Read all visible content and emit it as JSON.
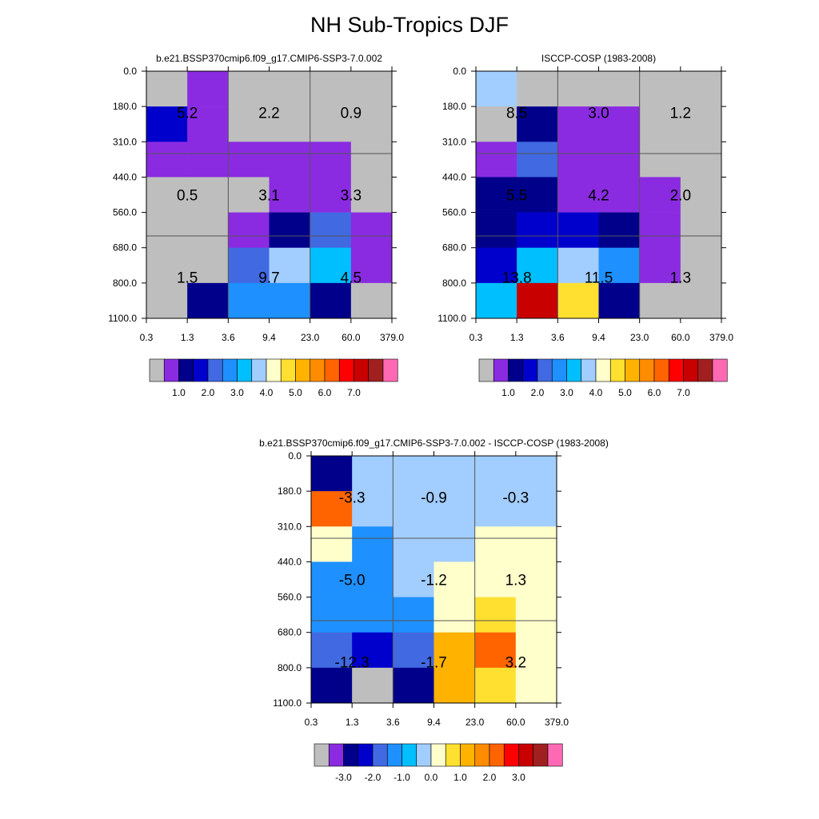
{
  "title": "NH Sub-Tropics DJF",
  "chart_data": [
    {
      "type": "heatmap",
      "title": "b.e21.BSSP370cmip6.f09_g17.CMIP6-SSP3-7.0.002",
      "x_ticks": [
        "0.3",
        "1.3",
        "3.6",
        "9.4",
        "23.0",
        "60.0",
        "379.0"
      ],
      "y_ticks": [
        "0.0",
        "180.0",
        "310.0",
        "440.0",
        "560.0",
        "680.0",
        "800.0",
        "1100.0"
      ],
      "cells": [
        [
          "missing",
          "lt1",
          "missing",
          "missing",
          "missing",
          "missing"
        ],
        [
          "1-1.5",
          "lt1",
          "missing",
          "missing",
          "missing",
          "missing"
        ],
        [
          "lt1",
          "lt1",
          "lt1",
          "lt1",
          "lt1",
          "missing"
        ],
        [
          "missing",
          "missing",
          "missing",
          "lt1",
          "lt1",
          "missing"
        ],
        [
          "missing",
          "missing",
          "lt1",
          "0.5-1",
          "1.5-2",
          "lt1"
        ],
        [
          "missing",
          "missing",
          "1.5-2",
          "3.5-4",
          "2.5-3",
          "lt1"
        ],
        [
          "missing",
          "0.5-1",
          "2-2.5",
          "2-2.5",
          "0.5-1",
          "missing"
        ]
      ],
      "block_labels": [
        {
          "row": 0,
          "col": 0,
          "text": "5.2"
        },
        {
          "row": 0,
          "col": 1,
          "text": "2.2"
        },
        {
          "row": 0,
          "col": 2,
          "text": "0.9"
        },
        {
          "row": 1,
          "col": 0,
          "text": "0.5"
        },
        {
          "row": 1,
          "col": 1,
          "text": "3.1"
        },
        {
          "row": 1,
          "col": 2,
          "text": "3.3"
        },
        {
          "row": 2,
          "col": 0,
          "text": "1.5"
        },
        {
          "row": 2,
          "col": 1,
          "text": "9.7"
        },
        {
          "row": 2,
          "col": 2,
          "text": "4.5"
        }
      ],
      "colorbar": {
        "colors": [
          "#bebebe",
          "#8a2be2",
          "#00008b",
          "#0000cd",
          "#4169e1",
          "#1e90ff",
          "#00bfff",
          "#a2cdff",
          "#ffffcc",
          "#ffe030",
          "#ffb300",
          "#ff8c00",
          "#ff6400",
          "#ff0000",
          "#c80000",
          "#a02020",
          "#ff69b4"
        ],
        "labels": [
          "1.0",
          "2.0",
          "3.0",
          "4.0",
          "5.0",
          "6.0",
          "7.0"
        ]
      }
    },
    {
      "type": "heatmap",
      "title": "ISCCP-COSP (1983-2008)",
      "x_ticks": [
        "0.3",
        "1.3",
        "3.6",
        "9.4",
        "23.0",
        "60.0",
        "379.0"
      ],
      "y_ticks": [
        "0.0",
        "180.0",
        "310.0",
        "440.0",
        "560.0",
        "680.0",
        "800.0",
        "1100.0"
      ],
      "cells": [
        [
          "3.5-4",
          "missing",
          "missing",
          "missing",
          "missing",
          "missing"
        ],
        [
          "missing",
          "0.5-1",
          "lt1",
          "lt1",
          "missing",
          "missing"
        ],
        [
          "lt1",
          "1.5-2",
          "lt1",
          "lt1",
          "missing",
          "missing"
        ],
        [
          "0.5-1",
          "0.5-1",
          "lt1",
          "lt1",
          "lt1",
          "missing"
        ],
        [
          "0.5-1",
          "1-1.5",
          "1-1.5",
          "0.5-1",
          "lt1",
          "missing"
        ],
        [
          "1-1.5",
          "2.5-3",
          "3.5-4",
          "2-2.5",
          "lt1",
          "missing"
        ],
        [
          "2.5-3",
          "6.5-7",
          "4.5-5",
          "0.5-1",
          "missing",
          "missing"
        ]
      ],
      "block_labels": [
        {
          "row": 0,
          "col": 0,
          "text": "8.5"
        },
        {
          "row": 0,
          "col": 1,
          "text": "3.0"
        },
        {
          "row": 0,
          "col": 2,
          "text": "1.2"
        },
        {
          "row": 1,
          "col": 0,
          "text": "5.5"
        },
        {
          "row": 1,
          "col": 1,
          "text": "4.2"
        },
        {
          "row": 1,
          "col": 2,
          "text": "2.0"
        },
        {
          "row": 2,
          "col": 0,
          "text": "13.8"
        },
        {
          "row": 2,
          "col": 1,
          "text": "11.5"
        },
        {
          "row": 2,
          "col": 2,
          "text": "1.3"
        }
      ],
      "colorbar": {
        "colors": [
          "#bebebe",
          "#8a2be2",
          "#00008b",
          "#0000cd",
          "#4169e1",
          "#1e90ff",
          "#00bfff",
          "#a2cdff",
          "#ffffcc",
          "#ffe030",
          "#ffb300",
          "#ff8c00",
          "#ff6400",
          "#ff0000",
          "#c80000",
          "#a02020",
          "#ff69b4"
        ],
        "labels": [
          "1.0",
          "2.0",
          "3.0",
          "4.0",
          "5.0",
          "6.0",
          "7.0"
        ]
      }
    },
    {
      "type": "heatmap",
      "title": "b.e21.BSSP370cmip6.f09_g17.CMIP6-SSP3-7.0.002 - ISCCP-COSP (1983-2008)",
      "x_ticks": [
        "0.3",
        "1.3",
        "3.6",
        "9.4",
        "23.0",
        "60.0",
        "379.0"
      ],
      "y_ticks": [
        "0.0",
        "180.0",
        "310.0",
        "440.0",
        "560.0",
        "680.0",
        "800.0",
        "1100.0"
      ],
      "cells": [
        [
          "lt-3",
          "-0.5-0",
          "-0.5-0",
          "-0.5-0",
          "-0.5-0",
          "-0.5-0"
        ],
        [
          "2-2.5",
          "-0.5-0",
          "-0.5-0",
          "-0.5-0",
          "-0.5-0",
          "-0.5-0"
        ],
        [
          "0-0.5",
          "-1.5--1",
          "-0.5-0",
          "-0.5-0",
          "0-0.5",
          "0-0.5"
        ],
        [
          "-1.5--1",
          "-1.5--1",
          "-0.5-0",
          "0-0.5",
          "0-0.5",
          "0-0.5"
        ],
        [
          "-1.5--1",
          "-1.5--1",
          "-1.5--1",
          "0-0.5",
          "0.5-1",
          "0-0.5"
        ],
        [
          "-2--1.5",
          "-2.5--2",
          "-2--1.5",
          "1-1.5",
          "2-2.5",
          "0-0.5"
        ],
        [
          "lt-3",
          "missing",
          "lt-3",
          "1-1.5",
          "0.5-1",
          "0-0.5"
        ]
      ],
      "block_labels": [
        {
          "row": 0,
          "col": 0,
          "text": "-3.3"
        },
        {
          "row": 0,
          "col": 1,
          "text": "-0.9"
        },
        {
          "row": 0,
          "col": 2,
          "text": "-0.3"
        },
        {
          "row": 1,
          "col": 0,
          "text": "-5.0"
        },
        {
          "row": 1,
          "col": 1,
          "text": "-1.2"
        },
        {
          "row": 1,
          "col": 2,
          "text": "1.3"
        },
        {
          "row": 2,
          "col": 0,
          "text": "-12.3"
        },
        {
          "row": 2,
          "col": 1,
          "text": "-1.7"
        },
        {
          "row": 2,
          "col": 2,
          "text": "3.2"
        }
      ],
      "colorbar": {
        "colors": [
          "#bebebe",
          "#8a2be2",
          "#00008b",
          "#0000cd",
          "#4169e1",
          "#1e90ff",
          "#00bfff",
          "#a2cdff",
          "#ffffcc",
          "#ffe030",
          "#ffb300",
          "#ff8c00",
          "#ff6400",
          "#ff0000",
          "#c80000",
          "#a02020",
          "#ff69b4"
        ],
        "labels": [
          "-3.0",
          "-2.0",
          "-1.0",
          "0.0",
          "1.0",
          "2.0",
          "3.0"
        ]
      }
    }
  ]
}
